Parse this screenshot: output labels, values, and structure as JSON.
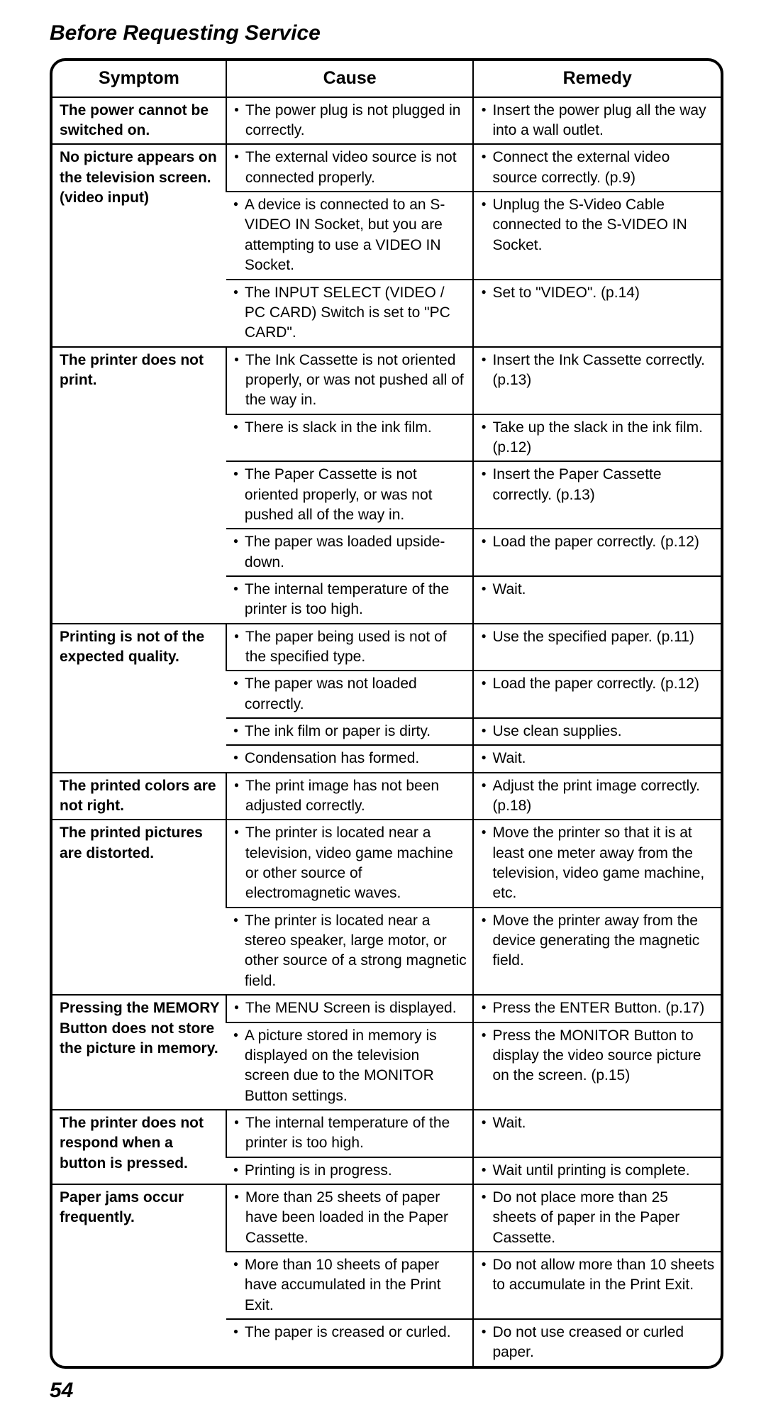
{
  "title": "Before Requesting Service",
  "pagenum": "54",
  "headers": {
    "symptom": "Symptom",
    "cause": "Cause",
    "remedy": "Remedy"
  },
  "rows": [
    {
      "symptom": "The power cannot be switched on.",
      "pairs": [
        {
          "cause": "The power plug is not plugged in correctly.",
          "remedy": "Insert the power plug all the way into a wall outlet."
        }
      ]
    },
    {
      "symptom": "No picture appears on the television screen. (video input)",
      "pairs": [
        {
          "cause": "The external video source is not connected properly.",
          "remedy": "Connect the external video source correctly. (p.9)"
        },
        {
          "cause": "A device is connected to an S-VIDEO IN Socket, but you are attempting to use a VIDEO IN Socket.",
          "remedy": "Unplug the S-Video Cable connected to the S-VIDEO IN Socket."
        },
        {
          "cause": "The INPUT SELECT (VIDEO / PC CARD) Switch is set to \"PC CARD\".",
          "remedy": "Set to \"VIDEO\". (p.14)"
        }
      ]
    },
    {
      "symptom": "The printer does not print.",
      "pairs": [
        {
          "cause": "The Ink Cassette is not oriented properly, or was not pushed all of the way in.",
          "remedy": "Insert the Ink Cassette correctly. (p.13)"
        },
        {
          "cause": "There is slack in the ink film.",
          "remedy": "Take up the slack in the ink film. (p.12)"
        },
        {
          "cause": "The Paper Cassette is not oriented properly, or was not pushed all of the way in.",
          "remedy": "Insert the Paper Cassette correctly. (p.13)"
        },
        {
          "cause": "The paper was loaded upside-down.",
          "remedy": "Load the paper correctly. (p.12)"
        },
        {
          "cause": "The internal temperature of the printer is too high.",
          "remedy": "Wait."
        }
      ]
    },
    {
      "symptom": "Printing is not of the expected quality.",
      "pairs": [
        {
          "cause": "The paper being used is not of the specified type.",
          "remedy": "Use the specified paper. (p.11)"
        },
        {
          "cause": "The paper was not loaded correctly.",
          "remedy": "Load the paper correctly. (p.12)"
        },
        {
          "cause": "The ink film or paper is dirty.",
          "remedy": "Use clean supplies."
        },
        {
          "cause": "Condensation has formed.",
          "remedy": "Wait."
        }
      ]
    },
    {
      "symptom": "The printed colors are not right.",
      "pairs": [
        {
          "cause": "The print image has not been adjusted correctly.",
          "remedy": "Adjust the print image correctly. (p.18)"
        }
      ]
    },
    {
      "symptom": "The printed pictures are distorted.",
      "pairs": [
        {
          "cause": "The printer is located near a television, video game machine or other source of electromagnetic waves.",
          "remedy": "Move the printer so that it is at least one meter away from the television, video game machine, etc."
        },
        {
          "cause": "The printer is located near a stereo speaker, large motor, or other source of a strong magnetic field.",
          "remedy": "Move the printer away from the device generating the magnetic field."
        }
      ]
    },
    {
      "symptom": "Pressing the MEMORY Button does not store the picture in memory.",
      "pairs": [
        {
          "cause": "The MENU Screen is displayed.",
          "remedy": "Press the ENTER Button. (p.17)"
        },
        {
          "cause": "A picture stored in memory is displayed on the television screen due to the MONITOR Button settings.",
          "remedy": "Press the MONITOR Button to display the video source picture on the screen. (p.15)"
        }
      ]
    },
    {
      "symptom": "The printer does not respond when a button is pressed.",
      "pairs": [
        {
          "cause": "The internal temperature of the printer is too high.",
          "remedy": "Wait."
        },
        {
          "cause": "Printing is in progress.",
          "remedy": "Wait until printing is complete."
        }
      ]
    },
    {
      "symptom": "Paper jams occur frequently.",
      "pairs": [
        {
          "cause": "More than 25 sheets of paper have been loaded in the Paper Cassette.",
          "remedy": "Do not place more than 25 sheets of paper in the Paper Cassette."
        },
        {
          "cause": "More than 10 sheets of paper have accumulated in the Print Exit.",
          "remedy": "Do not allow more than 10 sheets to accumulate in the Print Exit."
        },
        {
          "cause": "The paper is creased or curled.",
          "remedy": "Do not use creased or curled paper."
        }
      ]
    }
  ]
}
